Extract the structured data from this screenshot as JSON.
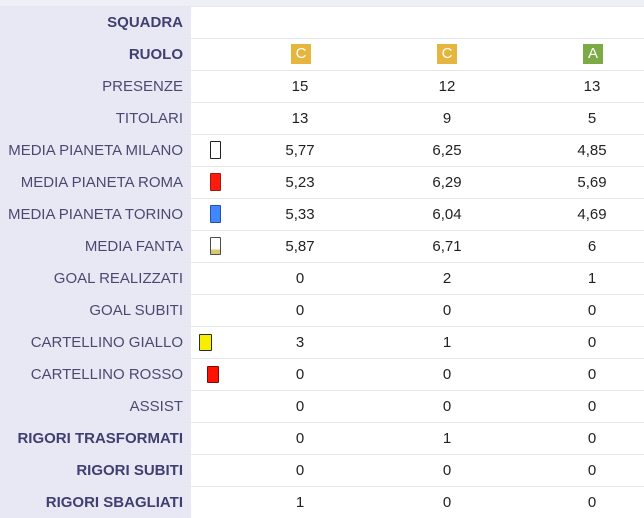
{
  "colors": {
    "label_background": "#e8e8f5",
    "label_text": "#4a4a70",
    "badge_c": "#e6b53e",
    "badge_a": "#7cab45"
  },
  "rows": {
    "squadra": {
      "label": "SQUADRA"
    },
    "ruolo": {
      "label": "RUOLO",
      "values": [
        "C",
        "C",
        "A"
      ],
      "badge_colors": [
        "#e6b53e",
        "#e6b53e",
        "#7cab45"
      ]
    },
    "presenze": {
      "label": "PRESENZE",
      "values": [
        "15",
        "12",
        "13"
      ]
    },
    "titolari": {
      "label": "TITOLARI",
      "values": [
        "13",
        "9",
        "5"
      ]
    },
    "media_pianeta_milano": {
      "label": "MEDIA PIANETA MILANO",
      "values": [
        "5,77",
        "6,25",
        "4,85"
      ],
      "marker_icon": "white-card-icon"
    },
    "media_pianeta_roma": {
      "label": "MEDIA PIANETA ROMA",
      "values": [
        "5,23",
        "6,29",
        "5,69"
      ],
      "marker_icon": "red-card-icon"
    },
    "media_pianeta_torino": {
      "label": "MEDIA PIANETA TORINO",
      "values": [
        "5,33",
        "6,04",
        "4,69"
      ],
      "marker_icon": "blue-card-icon"
    },
    "media_fanta": {
      "label": "MEDIA FANTA",
      "values": [
        "5,87",
        "6,71",
        "6"
      ],
      "marker_icon": "white-striped-card-icon"
    },
    "goal_realizzati": {
      "label": "GOAL REALIZZATI",
      "values": [
        "0",
        "2",
        "1"
      ]
    },
    "goal_subiti": {
      "label": "GOAL SUBITI",
      "values": [
        "0",
        "0",
        "0"
      ]
    },
    "cartellino_giallo": {
      "label": "CARTELLINO GIALLO",
      "values": [
        "3",
        "1",
        "0"
      ],
      "marker_icon": "yellow-card-icon"
    },
    "cartellino_rosso": {
      "label": "CARTELLINO ROSSO",
      "values": [
        "0",
        "0",
        "0"
      ],
      "marker_icon": "red-card-icon"
    },
    "assist": {
      "label": "ASSIST",
      "values": [
        "0",
        "0",
        "0"
      ]
    },
    "rigori_trasformati": {
      "label": "RIGORI TRASFORMATI",
      "values": [
        "0",
        "1",
        "0"
      ]
    },
    "rigori_subiti": {
      "label": "RIGORI SUBITI",
      "values": [
        "0",
        "0",
        "0"
      ]
    },
    "rigori_sbagliati": {
      "label": "RIGORI SBAGLIATI",
      "values": [
        "1",
        "0",
        "0"
      ]
    }
  }
}
